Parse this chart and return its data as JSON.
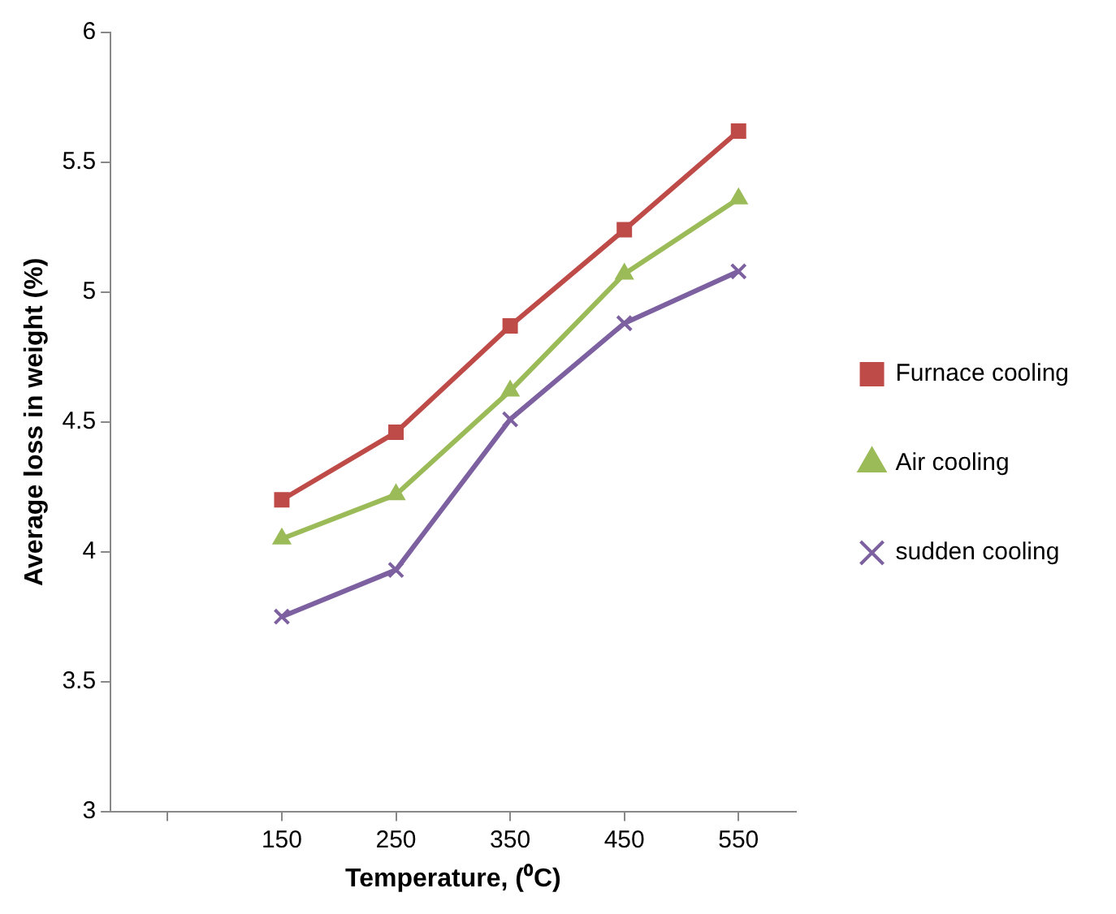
{
  "chart_data": {
    "type": "line",
    "xlabel": "Temperature, (⁰C)",
    "ylabel": "Average loss in weight (%)",
    "categories": [
      null,
      "150",
      "250",
      "350",
      "450",
      "550"
    ],
    "series": [
      {
        "name": "Furnace cooling",
        "color": "#be4b48",
        "marker": "square",
        "values": [
          null,
          4.2,
          4.46,
          4.87,
          5.24,
          5.62
        ]
      },
      {
        "name": "Air cooling",
        "color": "#9bbb59",
        "marker": "triangle",
        "values": [
          null,
          4.05,
          4.22,
          4.62,
          5.07,
          5.36
        ]
      },
      {
        "name": "sudden cooling",
        "color": "#7d60a0",
        "marker": "cross",
        "values": [
          null,
          3.75,
          3.93,
          4.51,
          4.88,
          5.08
        ]
      }
    ],
    "ylim": [
      3,
      6
    ],
    "yticks": [
      3,
      3.5,
      4,
      4.5,
      5,
      5.5,
      6
    ],
    "grid": false,
    "legend": "right"
  }
}
